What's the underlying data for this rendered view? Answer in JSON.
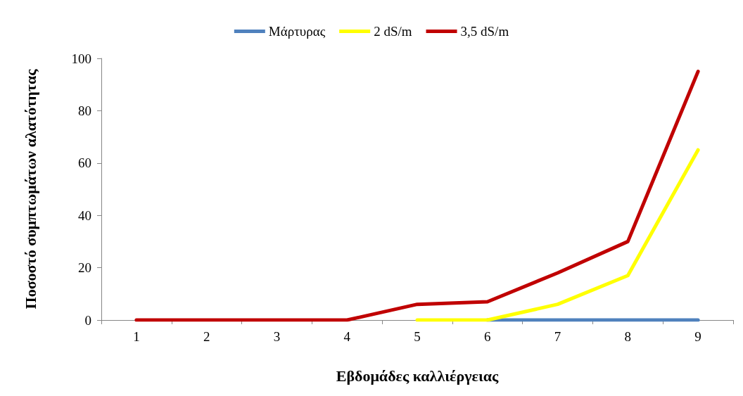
{
  "chart_data": {
    "type": "line",
    "xlabel": "Εβδομάδες καλλιέργειας",
    "ylabel": "Ποσοστό συμπτωμάτων αλατότητας",
    "categories": [
      "1",
      "2",
      "3",
      "4",
      "5",
      "6",
      "7",
      "8",
      "9"
    ],
    "series": [
      {
        "name": "Μάρτυρας",
        "color": "#4f81bd",
        "values": [
          null,
          null,
          null,
          null,
          null,
          0,
          0,
          0,
          0
        ]
      },
      {
        "name": "2 dS/m",
        "color": "#ffff00",
        "values": [
          null,
          null,
          null,
          null,
          0,
          0,
          6,
          17,
          65
        ]
      },
      {
        "name": "3,5 dS/m",
        "color": "#c00000",
        "values": [
          0,
          0,
          0,
          0,
          6,
          7,
          18,
          30,
          95
        ]
      }
    ],
    "ylim": [
      0,
      100
    ],
    "yticks": [
      0,
      20,
      40,
      60,
      80,
      100
    ],
    "grid": false,
    "legend": "top",
    "marker": "none",
    "line_style": "solid"
  }
}
